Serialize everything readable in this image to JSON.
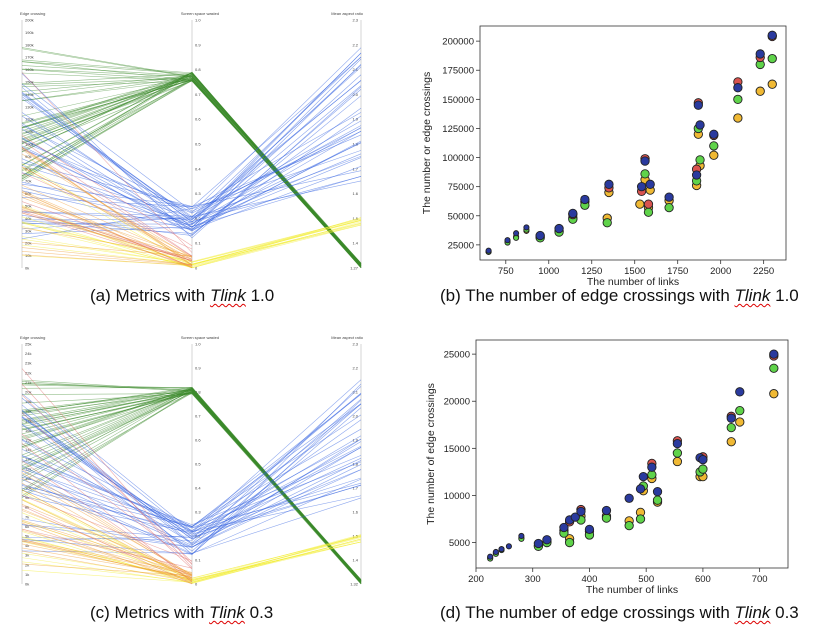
{
  "captions": {
    "a": {
      "prefix": "(a) Metrics with ",
      "tlink": "Tlink",
      "suffix": " 1.0"
    },
    "b": {
      "prefix": "(b) The number of edge crossings with ",
      "tlink": "Tlink",
      "suffix": " 1.0"
    },
    "c": {
      "prefix": "(c) Metrics with ",
      "tlink": "Tlink",
      "suffix": " 0.3"
    },
    "d": {
      "prefix": "(d) The number of edge crossings with ",
      "tlink": "Tlink",
      "suffix": " 0.3"
    }
  },
  "colors": {
    "navy": "#2a3a9e",
    "red": "#d9534f",
    "green": "#5fd34a",
    "gold": "#f0b934",
    "pc_green": "#3d8a2b",
    "pc_blue": "#2f5fe0",
    "pc_yellow": "#f2ec2e",
    "pc_orange": "#ef9a32",
    "pc_red": "#e06a6a"
  },
  "chart_data": [
    {
      "id": "a",
      "type": "parallel-coordinates",
      "axes": [
        "Edge crossing",
        "Screen space wasted",
        "Mean aspect ratio"
      ],
      "tick_labels": [
        [
          "0k",
          "10k",
          "20k",
          "30k",
          "40k",
          "50k",
          "60k",
          "70k",
          "80k",
          "90k",
          "100k",
          "110k",
          "120k",
          "130k",
          "140k",
          "150k",
          "160k",
          "170k",
          "180k",
          "190k",
          "200k"
        ],
        [
          "0",
          "0.1",
          "0.2",
          "0.3",
          "0.4",
          "0.5",
          "0.6",
          "0.7",
          "0.8",
          "0.9",
          "1.0"
        ],
        [
          "1.27",
          "1.4",
          "1.5",
          "1.6",
          "1.7",
          "1.8",
          "1.9",
          "2.0",
          "2.1",
          "2.2",
          "2.3"
        ]
      ],
      "line_groups": [
        {
          "color": "pc_green",
          "count": 48,
          "edge": [
            0.35,
            0.9
          ],
          "space": [
            0.75,
            0.79
          ],
          "ratio": [
            0.0,
            0.02
          ]
        },
        {
          "color": "pc_blue",
          "count": 38,
          "edge": [
            0.1,
            0.8
          ],
          "space": [
            0.12,
            0.25
          ],
          "ratio": [
            0.35,
            0.9
          ]
        },
        {
          "color": "pc_yellow",
          "count": 14,
          "edge": [
            0.05,
            0.45
          ],
          "space": [
            0.0,
            0.03
          ],
          "ratio": [
            0.17,
            0.21
          ]
        },
        {
          "color": "pc_orange",
          "count": 20,
          "edge": [
            0.05,
            0.5
          ],
          "space": [
            0.0,
            0.05
          ],
          "ratio": null
        },
        {
          "color": "pc_red",
          "count": 10,
          "edge": [
            0.2,
            0.9
          ],
          "space": [
            0.0,
            0.1
          ],
          "ratio": null
        }
      ]
    },
    {
      "id": "b",
      "type": "scatter",
      "xlabel": "The number of links",
      "ylabel": "The number or edge crossings",
      "xlim": [
        600,
        2380
      ],
      "ylim": [
        12000,
        213000
      ],
      "xticks": [
        750,
        1000,
        1250,
        1500,
        1750,
        2000,
        2250
      ],
      "yticks": [
        25000,
        50000,
        75000,
        100000,
        125000,
        150000,
        175000,
        200000
      ],
      "series": [
        {
          "color": "navy",
          "points": [
            [
              650,
              20000
            ],
            [
              760,
              29000
            ],
            [
              810,
              35000
            ],
            [
              870,
              40000
            ],
            [
              950,
              33000
            ],
            [
              1060,
              39000
            ],
            [
              1140,
              52000
            ],
            [
              1210,
              64000
            ],
            [
              1350,
              77000
            ],
            [
              1540,
              75000
            ],
            [
              1560,
              97000
            ],
            [
              1590,
              77000
            ],
            [
              1700,
              66000
            ],
            [
              1860,
              85000
            ],
            [
              1870,
              145000
            ],
            [
              1880,
              128000
            ],
            [
              1960,
              120000
            ],
            [
              2100,
              160000
            ],
            [
              2230,
              189000
            ],
            [
              2300,
              205000
            ]
          ]
        },
        {
          "color": "red",
          "points": [
            [
              1140,
              51000
            ],
            [
              1350,
              74000
            ],
            [
              1540,
              71000
            ],
            [
              1560,
              99000
            ],
            [
              1580,
              60000
            ],
            [
              1860,
              90000
            ],
            [
              1870,
              147000
            ],
            [
              1960,
              119000
            ],
            [
              2100,
              165000
            ],
            [
              2230,
              186000
            ],
            [
              2300,
              204000
            ]
          ]
        },
        {
          "color": "green",
          "points": [
            [
              650,
              19000
            ],
            [
              760,
              27000
            ],
            [
              810,
              31000
            ],
            [
              870,
              38000
            ],
            [
              950,
              31000
            ],
            [
              1060,
              36000
            ],
            [
              1140,
              47000
            ],
            [
              1210,
              59000
            ],
            [
              1340,
              44000
            ],
            [
              1560,
              86000
            ],
            [
              1580,
              53000
            ],
            [
              1700,
              57000
            ],
            [
              1860,
              80000
            ],
            [
              1870,
              125000
            ],
            [
              1880,
              98000
            ],
            [
              1960,
              110000
            ],
            [
              2100,
              150000
            ],
            [
              2230,
              180000
            ],
            [
              2300,
              185000
            ]
          ]
        },
        {
          "color": "gold",
          "points": [
            [
              650,
              19000
            ],
            [
              760,
              28000
            ],
            [
              810,
              32000
            ],
            [
              870,
              37000
            ],
            [
              950,
              32000
            ],
            [
              1060,
              37000
            ],
            [
              1140,
              48000
            ],
            [
              1210,
              62000
            ],
            [
              1340,
              48000
            ],
            [
              1350,
              70000
            ],
            [
              1530,
              60000
            ],
            [
              1560,
              81000
            ],
            [
              1580,
              57000
            ],
            [
              1590,
              72000
            ],
            [
              1700,
              63000
            ],
            [
              1860,
              76000
            ],
            [
              1870,
              120000
            ],
            [
              1880,
              93000
            ],
            [
              1960,
              102000
            ],
            [
              2100,
              134000
            ],
            [
              2230,
              157000
            ],
            [
              2300,
              163000
            ]
          ]
        }
      ]
    },
    {
      "id": "c",
      "type": "parallel-coordinates",
      "axes": [
        "Edge crossing",
        "Screen space wasted",
        "Mean aspect ratio"
      ],
      "tick_labels": [
        [
          "0k",
          "1k",
          "2k",
          "3k",
          "4k",
          "5k",
          "6k",
          "7k",
          "8k",
          "9k",
          "10k",
          "11k",
          "12k",
          "13k",
          "14k",
          "15k",
          "16k",
          "17k",
          "18k",
          "19k",
          "20k",
          "21k",
          "22k",
          "23k",
          "24k",
          "25k"
        ],
        [
          "0",
          "0.1",
          "0.2",
          "0.3",
          "0.4",
          "0.5",
          "0.6",
          "0.7",
          "0.8",
          "0.9",
          "1.0"
        ],
        [
          "1.32",
          "1.4",
          "1.5",
          "1.6",
          "1.7",
          "1.8",
          "1.9",
          "2.0",
          "2.1",
          "2.2",
          "2.3"
        ]
      ],
      "line_groups": [
        {
          "color": "pc_green",
          "count": 45,
          "edge": [
            0.35,
            0.9
          ],
          "space": [
            0.79,
            0.82
          ],
          "ratio": [
            0.0,
            0.02
          ]
        },
        {
          "color": "pc_blue",
          "count": 36,
          "edge": [
            0.1,
            0.8
          ],
          "space": [
            0.1,
            0.25
          ],
          "ratio": [
            0.35,
            0.88
          ]
        },
        {
          "color": "pc_yellow",
          "count": 14,
          "edge": [
            0.05,
            0.45
          ],
          "space": [
            0.0,
            0.03
          ],
          "ratio": [
            0.17,
            0.21
          ]
        },
        {
          "color": "pc_orange",
          "count": 22,
          "edge": [
            0.05,
            0.5
          ],
          "space": [
            0.0,
            0.05
          ],
          "ratio": null
        },
        {
          "color": "pc_red",
          "count": 10,
          "edge": [
            0.2,
            0.95
          ],
          "space": [
            0.0,
            0.1
          ],
          "ratio": null
        }
      ]
    },
    {
      "id": "d",
      "type": "scatter",
      "xlabel": "The number of links",
      "ylabel": "The number of edge crossings",
      "xlim": [
        200,
        750
      ],
      "ylim": [
        2300,
        26500
      ],
      "xticks": [
        200,
        300,
        400,
        500,
        600,
        700
      ],
      "yticks": [
        5000,
        10000,
        15000,
        20000,
        25000
      ],
      "series": [
        {
          "color": "navy",
          "points": [
            [
              225,
              3500
            ],
            [
              235,
              4000
            ],
            [
              245,
              4300
            ],
            [
              258,
              4600
            ],
            [
              280,
              5700
            ],
            [
              310,
              4900
            ],
            [
              325,
              5300
            ],
            [
              355,
              6600
            ],
            [
              365,
              7400
            ],
            [
              375,
              7700
            ],
            [
              385,
              8300
            ],
            [
              400,
              6400
            ],
            [
              430,
              8400
            ],
            [
              470,
              9700
            ],
            [
              490,
              10700
            ],
            [
              495,
              12000
            ],
            [
              510,
              13000
            ],
            [
              520,
              10400
            ],
            [
              555,
              15500
            ],
            [
              595,
              14000
            ],
            [
              600,
              13800
            ],
            [
              650,
              18200
            ],
            [
              665,
              21000
            ],
            [
              725,
              25000
            ]
          ]
        },
        {
          "color": "red",
          "points": [
            [
              365,
              7200
            ],
            [
              385,
              8500
            ],
            [
              510,
              13400
            ],
            [
              555,
              15800
            ],
            [
              600,
              14100
            ],
            [
              650,
              18400
            ],
            [
              725,
              24800
            ]
          ]
        },
        {
          "color": "green",
          "points": [
            [
              225,
              3300
            ],
            [
              235,
              3800
            ],
            [
              245,
              4200
            ],
            [
              280,
              5400
            ],
            [
              310,
              4600
            ],
            [
              325,
              5000
            ],
            [
              355,
              6000
            ],
            [
              365,
              5000
            ],
            [
              385,
              7400
            ],
            [
              400,
              5800
            ],
            [
              430,
              7600
            ],
            [
              470,
              6800
            ],
            [
              490,
              7500
            ],
            [
              495,
              11000
            ],
            [
              510,
              12200
            ],
            [
              520,
              9500
            ],
            [
              555,
              14500
            ],
            [
              595,
              12500
            ],
            [
              600,
              12800
            ],
            [
              650,
              17200
            ],
            [
              665,
              19000
            ],
            [
              725,
              23500
            ]
          ]
        },
        {
          "color": "gold",
          "points": [
            [
              225,
              3400
            ],
            [
              235,
              3900
            ],
            [
              245,
              4300
            ],
            [
              280,
              5500
            ],
            [
              310,
              4700
            ],
            [
              325,
              5100
            ],
            [
              355,
              6300
            ],
            [
              365,
              5400
            ],
            [
              385,
              7800
            ],
            [
              400,
              6200
            ],
            [
              430,
              7800
            ],
            [
              470,
              7300
            ],
            [
              490,
              8200
            ],
            [
              495,
              10500
            ],
            [
              510,
              11800
            ],
            [
              520,
              9300
            ],
            [
              555,
              13600
            ],
            [
              595,
              12000
            ],
            [
              600,
              12000
            ],
            [
              650,
              15700
            ],
            [
              665,
              17800
            ],
            [
              725,
              20800
            ]
          ]
        }
      ]
    }
  ]
}
